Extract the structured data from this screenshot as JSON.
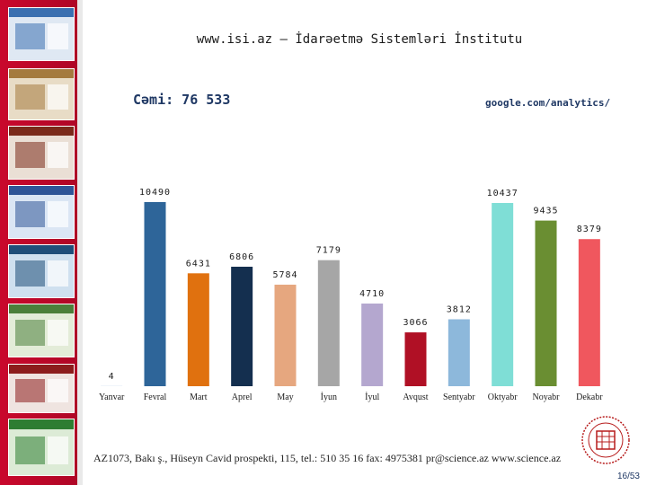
{
  "page": {
    "title": "www.isi.az – İdarəetmə Sistemləri İnstitutu",
    "total": "Cəmi: 76 533",
    "source": "google.com/analytics/",
    "footer": "AZ1073, Bakı ş., Hüseyn Cavid prospekti, 115, tel.: 510 35 16 fax: 4975381 pr@science.az www.science.az",
    "page_number": "16/53"
  },
  "sidebar": {
    "thumbnails": [
      {
        "name": "thumb-1",
        "accent": "#3a6fb0",
        "body": "#dfe8f3"
      },
      {
        "name": "thumb-2",
        "accent": "#a47a3e",
        "body": "#e8dcc6"
      },
      {
        "name": "thumb-3",
        "accent": "#7a2a1a",
        "body": "#eadfd5"
      },
      {
        "name": "thumb-4",
        "accent": "#2f5597",
        "body": "#dbe6f4"
      },
      {
        "name": "thumb-5",
        "accent": "#1f4e79",
        "body": "#cfe0ef"
      },
      {
        "name": "thumb-6",
        "accent": "#4b7f3a",
        "body": "#e3ecd8"
      },
      {
        "name": "thumb-7",
        "accent": "#8c1c1c",
        "body": "#efe4e0"
      },
      {
        "name": "thumb-8",
        "accent": "#2e7d32",
        "body": "#dcebd6"
      }
    ]
  },
  "chart_data": {
    "type": "bar",
    "categories": [
      "Yanvar",
      "Fevral",
      "Mart",
      "Aprel",
      "May",
      "İyun",
      "İyul",
      "Avqust",
      "Sentyabr",
      "Oktyabr",
      "Noyabr",
      "Dekabr"
    ],
    "values": [
      4,
      10490,
      6431,
      6806,
      5784,
      7179,
      4710,
      3066,
      3812,
      10437,
      9435,
      8379
    ],
    "labels": [
      "4",
      "10490",
      "6431",
      "6806",
      "5784",
      "7179",
      "4710",
      "3066",
      "3812",
      "10437",
      "9435",
      "8379"
    ],
    "colors": [
      "#2e75b6",
      "#2e6599",
      "#e0710f",
      "#142f4f",
      "#e6a77f",
      "#a6a6a6",
      "#b4a7cf",
      "#b01025",
      "#8db8db",
      "#7fded6",
      "#6a8e32",
      "#f0575e"
    ],
    "ylim": [
      0,
      11000
    ]
  }
}
